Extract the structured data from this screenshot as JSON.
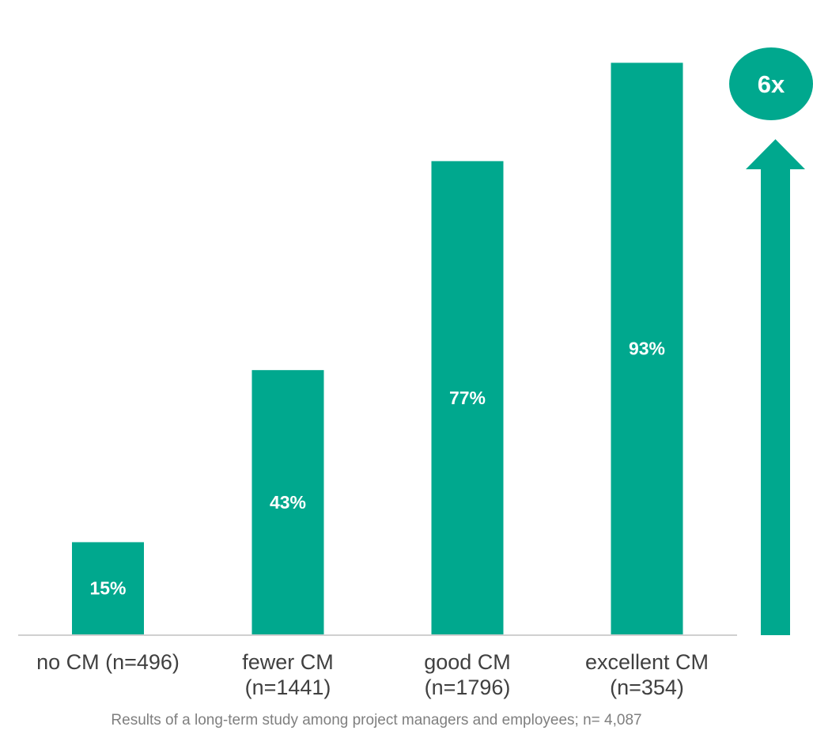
{
  "chart_data": {
    "type": "bar",
    "title": "",
    "xlabel": "",
    "ylabel": "",
    "categories": [
      [
        "no CM (n=496)"
      ],
      [
        "fewer CM",
        "(n=1441)"
      ],
      [
        "good CM",
        "(n=1796)"
      ],
      [
        "excellent CM",
        "(n=354)"
      ]
    ],
    "values": [
      15,
      43,
      77,
      93
    ],
    "value_labels": [
      "15%",
      "43%",
      "77%",
      "93%"
    ],
    "ylim": [
      0,
      100
    ],
    "grid": false,
    "legend": "none",
    "annotation": "6x",
    "footnote": "Results of a long-term study among project managers and employees; n= 4,087"
  },
  "colors": {
    "bar": "#00a88e",
    "axis": "#d0d0d0",
    "label_text": "#404040",
    "footnote_text": "#7f7f7f"
  },
  "icons": {
    "growth_arrow": "up-arrow-icon"
  }
}
